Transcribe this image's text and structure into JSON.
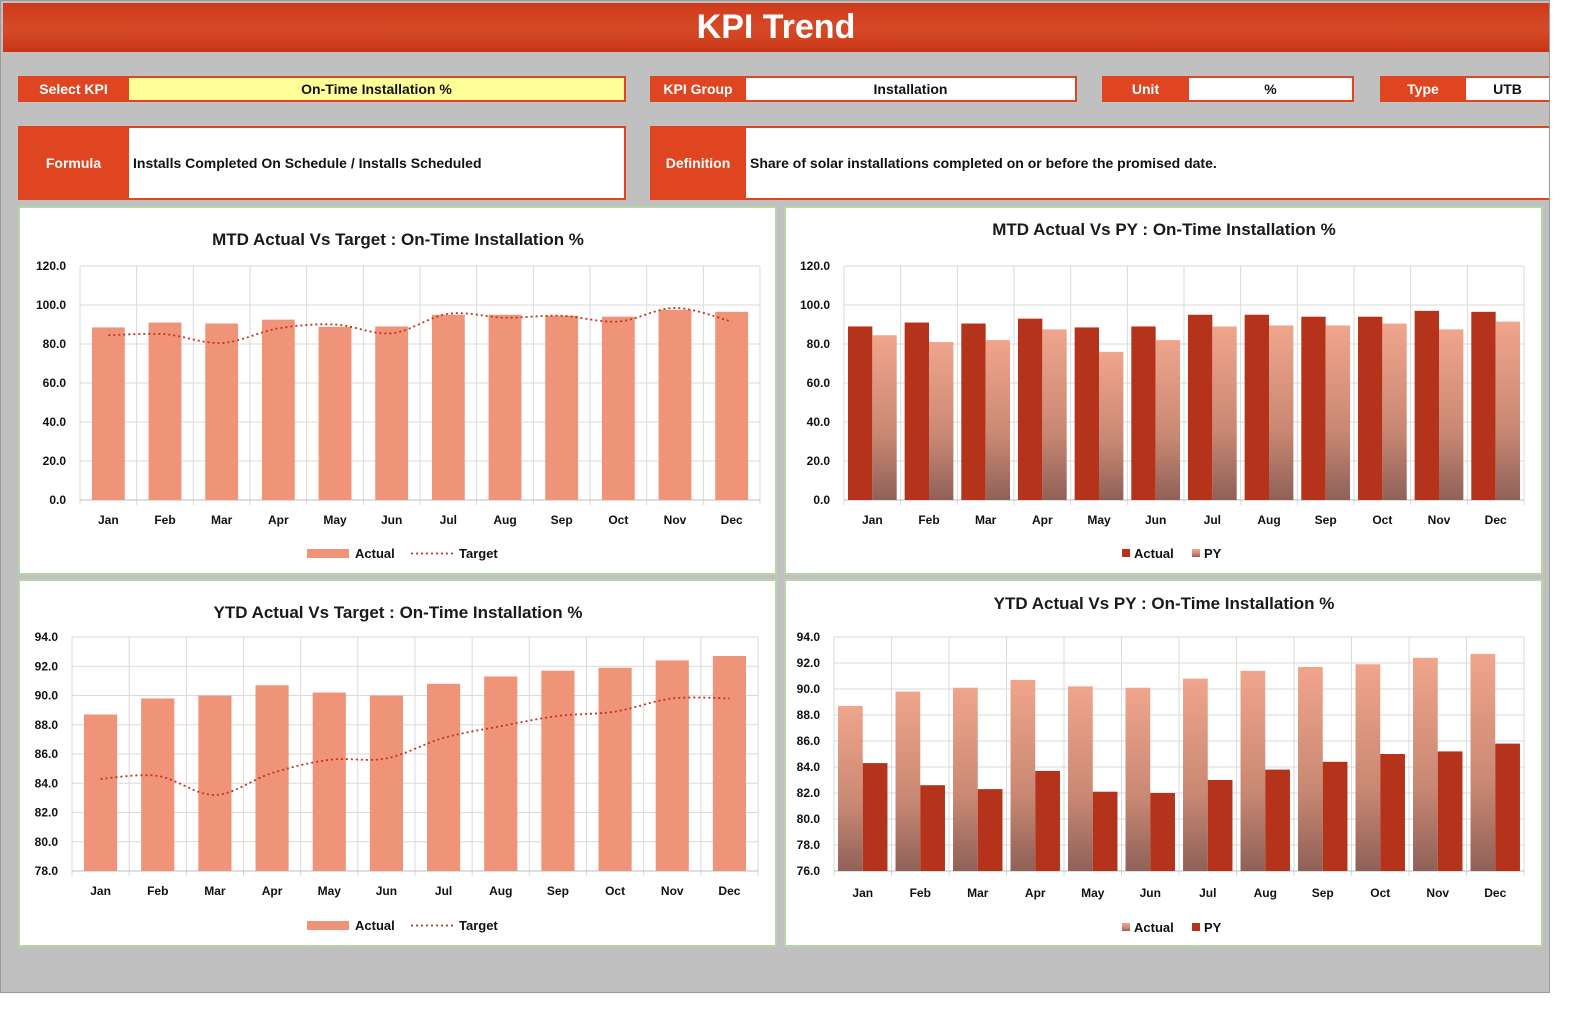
{
  "header": {
    "title": "KPI Trend"
  },
  "selectors": {
    "select_kpi_label": "Select KPI",
    "select_kpi_value": "On-Time Installation %",
    "kpi_group_label": "KPI Group",
    "kpi_group_value": "Installation",
    "unit_label": "Unit",
    "unit_value": "%",
    "type_label": "Type",
    "type_value": "UTB",
    "formula_label": "Formula",
    "formula_value": "Installs Completed On Schedule / Installs Scheduled",
    "definition_label": "Definition",
    "definition_value": "Share of solar installations completed on or before the promised date."
  },
  "colors": {
    "orange": "#de4520",
    "bar_light": "#ef9479",
    "bar_dark": "#b5331a",
    "target_line": "#c0341c",
    "yellow": "#ffff99"
  },
  "chart_data": [
    {
      "type": "bar",
      "title": "MTD Actual Vs Target : On-Time Installation %",
      "categories": [
        "Jan",
        "Feb",
        "Mar",
        "Apr",
        "May",
        "Jun",
        "Jul",
        "Aug",
        "Sep",
        "Oct",
        "Nov",
        "Dec"
      ],
      "series": [
        {
          "name": "Actual",
          "kind": "bar",
          "values": [
            88.5,
            91.0,
            90.5,
            92.5,
            88.8,
            89.0,
            95.0,
            95.0,
            94.5,
            94.0,
            97.5,
            96.5
          ]
        },
        {
          "name": "Target",
          "kind": "dotted-line",
          "values": [
            84.5,
            85.0,
            80.5,
            88.0,
            90.0,
            85.5,
            95.5,
            93.5,
            94.5,
            91.5,
            98.5,
            91.5
          ]
        }
      ],
      "ylim": [
        0,
        120
      ],
      "yticks": [
        "0.0",
        "20.0",
        "40.0",
        "60.0",
        "80.0",
        "100.0",
        "120.0"
      ],
      "grid": true,
      "legend": "bottom"
    },
    {
      "type": "bar",
      "title": "MTD Actual Vs PY : On-Time Installation %",
      "categories": [
        "Jan",
        "Feb",
        "Mar",
        "Apr",
        "May",
        "Jun",
        "Jul",
        "Aug",
        "Sep",
        "Oct",
        "Nov",
        "Dec"
      ],
      "series": [
        {
          "name": "Actual",
          "kind": "bar-dark",
          "values": [
            89.0,
            91.0,
            90.5,
            93.0,
            88.5,
            89.0,
            95.0,
            95.0,
            94.0,
            94.0,
            97.0,
            96.5
          ]
        },
        {
          "name": "PY",
          "kind": "bar-gradient",
          "values": [
            84.5,
            81.0,
            82.0,
            87.5,
            76.0,
            82.0,
            89.0,
            89.5,
            89.5,
            90.5,
            87.5,
            91.5
          ]
        }
      ],
      "ylim": [
        0,
        120
      ],
      "yticks": [
        "0.0",
        "20.0",
        "40.0",
        "60.0",
        "80.0",
        "100.0",
        "120.0"
      ],
      "grid": true,
      "legend": "bottom"
    },
    {
      "type": "bar",
      "title": "YTD Actual Vs Target : On-Time Installation %",
      "categories": [
        "Jan",
        "Feb",
        "Mar",
        "Apr",
        "May",
        "Jun",
        "Jul",
        "Aug",
        "Sep",
        "Oct",
        "Nov",
        "Dec"
      ],
      "series": [
        {
          "name": "Actual",
          "kind": "bar",
          "values": [
            88.7,
            89.8,
            90.0,
            90.7,
            90.2,
            90.0,
            90.8,
            91.3,
            91.7,
            91.9,
            92.4,
            92.7
          ]
        },
        {
          "name": "Target",
          "kind": "dotted-line",
          "values": [
            84.3,
            84.5,
            83.2,
            84.7,
            85.6,
            85.7,
            87.1,
            87.9,
            88.6,
            88.9,
            89.8,
            89.8
          ]
        }
      ],
      "ylim": [
        78,
        94
      ],
      "yticks": [
        "78.0",
        "80.0",
        "82.0",
        "84.0",
        "86.0",
        "88.0",
        "90.0",
        "92.0",
        "94.0"
      ],
      "grid": true,
      "legend": "bottom"
    },
    {
      "type": "bar",
      "title": "YTD Actual Vs PY : On-Time Installation %",
      "categories": [
        "Jan",
        "Feb",
        "Mar",
        "Apr",
        "May",
        "Jun",
        "Jul",
        "Aug",
        "Sep",
        "Oct",
        "Nov",
        "Dec"
      ],
      "series": [
        {
          "name": "Actual",
          "kind": "bar-gradient",
          "values": [
            88.7,
            89.8,
            90.1,
            90.7,
            90.2,
            90.1,
            90.8,
            91.4,
            91.7,
            91.9,
            92.4,
            92.7
          ]
        },
        {
          "name": "PY",
          "kind": "bar-dark",
          "values": [
            84.3,
            82.6,
            82.3,
            83.7,
            82.1,
            82.0,
            83.0,
            83.8,
            84.4,
            85.0,
            85.2,
            85.8
          ]
        }
      ],
      "ylim": [
        76,
        94
      ],
      "yticks": [
        "76.0",
        "78.0",
        "80.0",
        "82.0",
        "84.0",
        "86.0",
        "88.0",
        "90.0",
        "92.0",
        "94.0"
      ],
      "grid": true,
      "legend": "bottom"
    }
  ]
}
